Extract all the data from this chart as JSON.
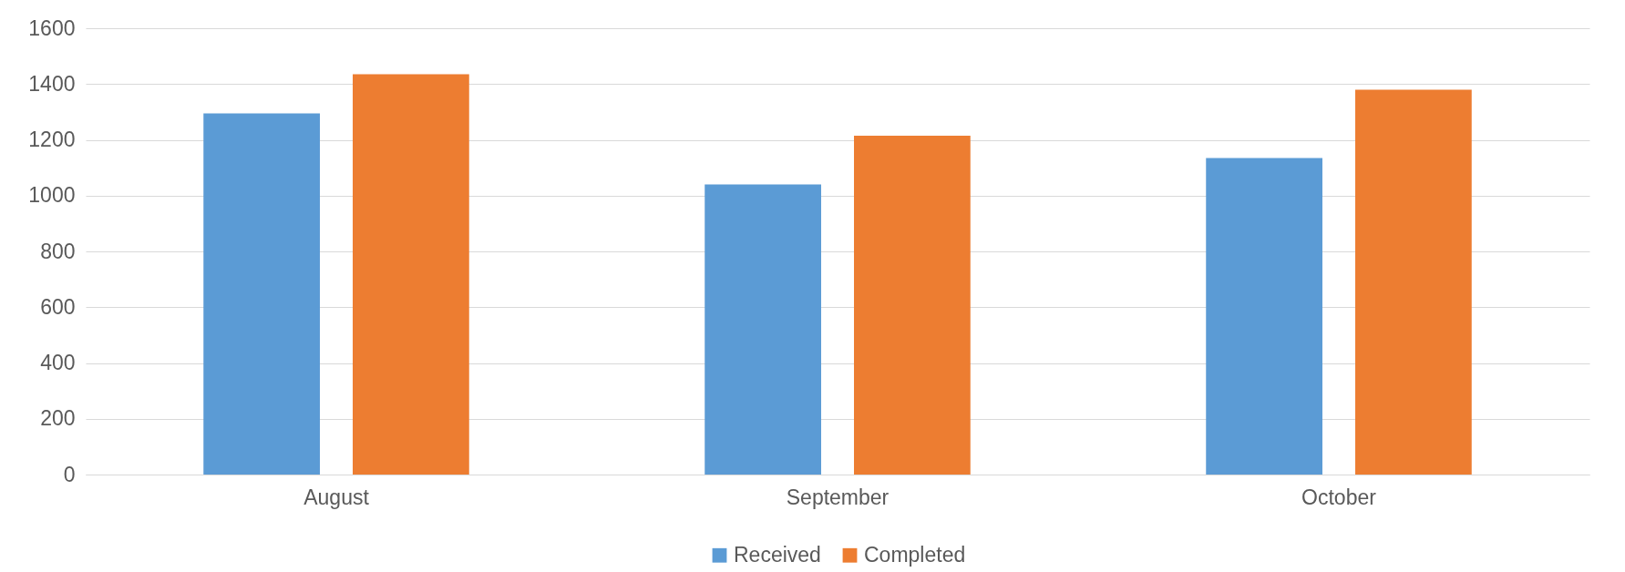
{
  "chart_data": {
    "type": "bar",
    "categories": [
      "August",
      "September",
      "October"
    ],
    "series": [
      {
        "name": "Received",
        "color": "#5b9bd5",
        "values": [
          1295,
          1040,
          1135
        ]
      },
      {
        "name": "Completed",
        "color": "#ed7d31",
        "values": [
          1435,
          1215,
          1380
        ]
      }
    ],
    "ylim": [
      0,
      1600
    ],
    "yticks": [
      0,
      200,
      400,
      600,
      800,
      1000,
      1200,
      1400,
      1600
    ],
    "grid": "y",
    "legend": "bottom"
  }
}
